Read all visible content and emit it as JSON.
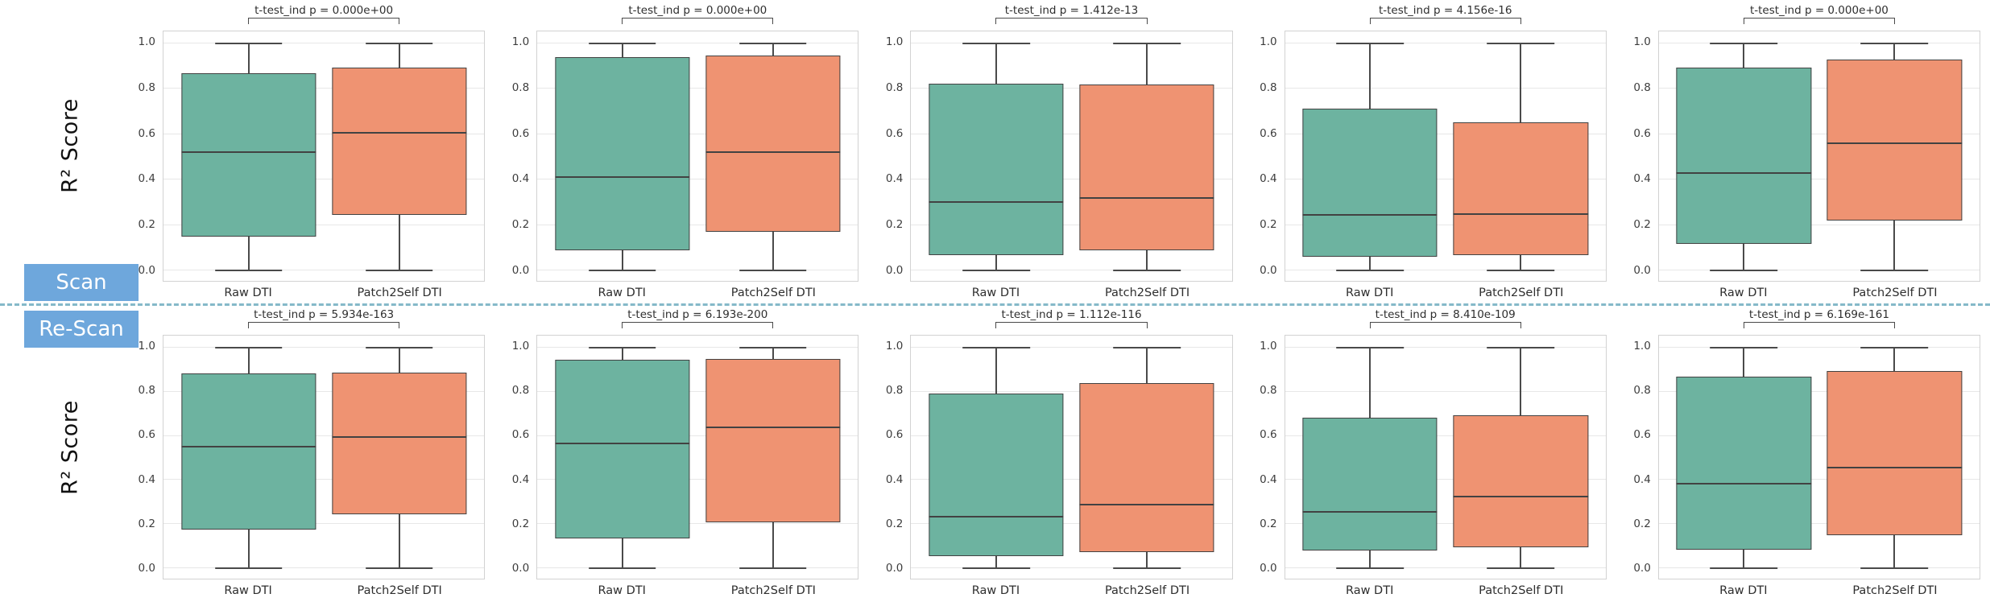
{
  "figure": {
    "ylabel": "R² Score",
    "row_labels": {
      "scan": "Scan",
      "rescan": "Re-Scan"
    },
    "categories": [
      "Raw DTI",
      "Patch2Self DTI"
    ],
    "colors": {
      "raw_box_fill": "#6db3a0",
      "patch2self_box_fill": "#ef9372",
      "box_edge": "#424242",
      "row_badge_blue": "#6ea7dc",
      "divider_dashed": "#85b9c9",
      "gridline": "#e7e7e7",
      "axis_spine": "#d2d2d2"
    }
  },
  "chart_data": [
    {
      "type": "box",
      "row": "Scan",
      "col": 1,
      "title": "t-test_ind p = 0.000e+00",
      "ylabel": "R² Score",
      "ylim": [
        0.0,
        1.0
      ],
      "yticks": [
        0.0,
        0.2,
        0.4,
        0.6,
        0.8,
        1.0
      ],
      "categories": [
        "Raw DTI",
        "Patch2Self DTI"
      ],
      "series": [
        {
          "name": "Raw DTI",
          "whislo": 0.0,
          "q1": 0.145,
          "med": 0.52,
          "q3": 0.865,
          "whishi": 1.0
        },
        {
          "name": "Patch2Self DTI",
          "whislo": 0.0,
          "q1": 0.24,
          "med": 0.605,
          "q3": 0.89,
          "whishi": 1.0
        }
      ]
    },
    {
      "type": "box",
      "row": "Scan",
      "col": 2,
      "title": "t-test_ind p = 0.000e+00",
      "ylabel": "R² Score",
      "ylim": [
        0.0,
        1.0
      ],
      "yticks": [
        0.0,
        0.2,
        0.4,
        0.6,
        0.8,
        1.0
      ],
      "categories": [
        "Raw DTI",
        "Patch2Self DTI"
      ],
      "series": [
        {
          "name": "Raw DTI",
          "whislo": 0.0,
          "q1": 0.085,
          "med": 0.41,
          "q3": 0.935,
          "whishi": 1.0
        },
        {
          "name": "Patch2Self DTI",
          "whislo": 0.0,
          "q1": 0.165,
          "med": 0.52,
          "q3": 0.945,
          "whishi": 1.0
        }
      ]
    },
    {
      "type": "box",
      "row": "Scan",
      "col": 3,
      "title": "t-test_ind p = 1.412e-13",
      "ylabel": "R² Score",
      "ylim": [
        0.0,
        1.0
      ],
      "yticks": [
        0.0,
        0.2,
        0.4,
        0.6,
        0.8,
        1.0
      ],
      "categories": [
        "Raw DTI",
        "Patch2Self DTI"
      ],
      "series": [
        {
          "name": "Raw DTI",
          "whislo": 0.0,
          "q1": 0.065,
          "med": 0.3,
          "q3": 0.82,
          "whishi": 1.0
        },
        {
          "name": "Patch2Self DTI",
          "whislo": 0.0,
          "q1": 0.085,
          "med": 0.32,
          "q3": 0.815,
          "whishi": 1.0
        }
      ]
    },
    {
      "type": "box",
      "row": "Scan",
      "col": 4,
      "title": "t-test_ind p = 4.156e-16",
      "ylabel": "R² Score",
      "ylim": [
        0.0,
        1.0
      ],
      "yticks": [
        0.0,
        0.2,
        0.4,
        0.6,
        0.8,
        1.0
      ],
      "categories": [
        "Raw DTI",
        "Patch2Self DTI"
      ],
      "series": [
        {
          "name": "Raw DTI",
          "whislo": 0.0,
          "q1": 0.055,
          "med": 0.245,
          "q3": 0.71,
          "whishi": 1.0
        },
        {
          "name": "Patch2Self DTI",
          "whislo": 0.0,
          "q1": 0.065,
          "med": 0.25,
          "q3": 0.65,
          "whishi": 1.0
        }
      ]
    },
    {
      "type": "box",
      "row": "Scan",
      "col": 5,
      "title": "t-test_ind p = 0.000e+00",
      "ylabel": "R² Score",
      "ylim": [
        0.0,
        1.0
      ],
      "yticks": [
        0.0,
        0.2,
        0.4,
        0.6,
        0.8,
        1.0
      ],
      "categories": [
        "Raw DTI",
        "Patch2Self DTI"
      ],
      "series": [
        {
          "name": "Raw DTI",
          "whislo": 0.0,
          "q1": 0.115,
          "med": 0.43,
          "q3": 0.89,
          "whishi": 1.0
        },
        {
          "name": "Patch2Self DTI",
          "whislo": 0.0,
          "q1": 0.215,
          "med": 0.56,
          "q3": 0.925,
          "whishi": 1.0
        }
      ]
    },
    {
      "type": "box",
      "row": "Re-Scan",
      "col": 1,
      "title": "t-test_ind p = 5.934e-163",
      "ylabel": "R² Score",
      "ylim": [
        0.0,
        1.0
      ],
      "yticks": [
        0.0,
        0.2,
        0.4,
        0.6,
        0.8,
        1.0
      ],
      "categories": [
        "Raw DTI",
        "Patch2Self DTI"
      ],
      "series": [
        {
          "name": "Raw DTI",
          "whislo": 0.0,
          "q1": 0.17,
          "med": 0.55,
          "q3": 0.88,
          "whishi": 1.0
        },
        {
          "name": "Patch2Self DTI",
          "whislo": 0.0,
          "q1": 0.24,
          "med": 0.595,
          "q3": 0.885,
          "whishi": 1.0
        }
      ]
    },
    {
      "type": "box",
      "row": "Re-Scan",
      "col": 2,
      "title": "t-test_ind p = 6.193e-200",
      "ylabel": "R² Score",
      "ylim": [
        0.0,
        1.0
      ],
      "yticks": [
        0.0,
        0.2,
        0.4,
        0.6,
        0.8,
        1.0
      ],
      "categories": [
        "Raw DTI",
        "Patch2Self DTI"
      ],
      "series": [
        {
          "name": "Raw DTI",
          "whislo": 0.0,
          "q1": 0.13,
          "med": 0.565,
          "q3": 0.94,
          "whishi": 1.0
        },
        {
          "name": "Patch2Self DTI",
          "whislo": 0.0,
          "q1": 0.205,
          "med": 0.64,
          "q3": 0.945,
          "whishi": 1.0
        }
      ]
    },
    {
      "type": "box",
      "row": "Re-Scan",
      "col": 3,
      "title": "t-test_ind p = 1.112e-116",
      "ylabel": "R² Score",
      "ylim": [
        0.0,
        1.0
      ],
      "yticks": [
        0.0,
        0.2,
        0.4,
        0.6,
        0.8,
        1.0
      ],
      "categories": [
        "Raw DTI",
        "Patch2Self DTI"
      ],
      "series": [
        {
          "name": "Raw DTI",
          "whislo": 0.0,
          "q1": 0.05,
          "med": 0.235,
          "q3": 0.79,
          "whishi": 1.0
        },
        {
          "name": "Patch2Self DTI",
          "whislo": 0.0,
          "q1": 0.07,
          "med": 0.29,
          "q3": 0.835,
          "whishi": 1.0
        }
      ]
    },
    {
      "type": "box",
      "row": "Re-Scan",
      "col": 4,
      "title": "t-test_ind p = 8.410e-109",
      "ylabel": "R² Score",
      "ylim": [
        0.0,
        1.0
      ],
      "yticks": [
        0.0,
        0.2,
        0.4,
        0.6,
        0.8,
        1.0
      ],
      "categories": [
        "Raw DTI",
        "Patch2Self DTI"
      ],
      "series": [
        {
          "name": "Raw DTI",
          "whislo": 0.0,
          "q1": 0.075,
          "med": 0.255,
          "q3": 0.68,
          "whishi": 1.0
        },
        {
          "name": "Patch2Self DTI",
          "whislo": 0.0,
          "q1": 0.09,
          "med": 0.325,
          "q3": 0.69,
          "whishi": 1.0
        }
      ]
    },
    {
      "type": "box",
      "row": "Re-Scan",
      "col": 5,
      "title": "t-test_ind p = 6.169e-161",
      "ylabel": "R² Score",
      "ylim": [
        0.0,
        1.0
      ],
      "yticks": [
        0.0,
        0.2,
        0.4,
        0.6,
        0.8,
        1.0
      ],
      "categories": [
        "Raw DTI",
        "Patch2Self DTI"
      ],
      "series": [
        {
          "name": "Raw DTI",
          "whislo": 0.0,
          "q1": 0.08,
          "med": 0.385,
          "q3": 0.865,
          "whishi": 1.0
        },
        {
          "name": "Patch2Self DTI",
          "whislo": 0.0,
          "q1": 0.145,
          "med": 0.455,
          "q3": 0.89,
          "whishi": 1.0
        }
      ]
    }
  ]
}
